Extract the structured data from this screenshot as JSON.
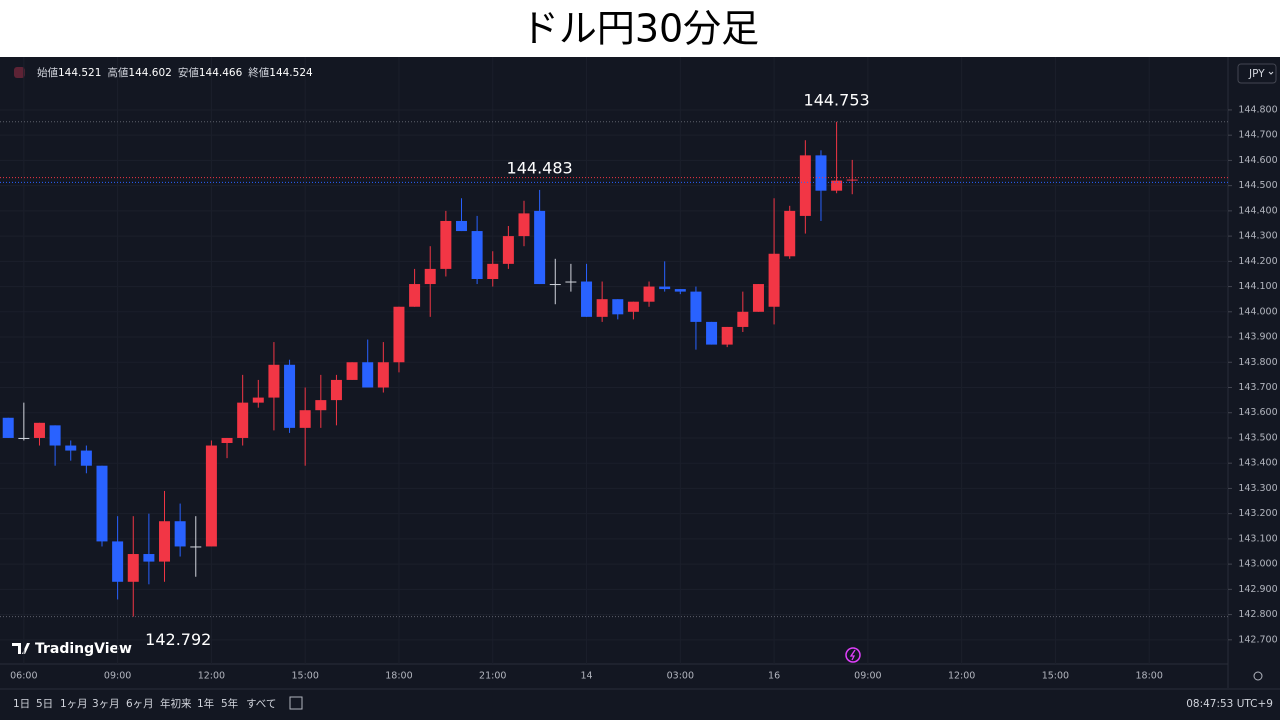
{
  "chart_data": {
    "type": "candlestick",
    "title": "ドル円30分足",
    "up_color": "#f23645",
    "down_color": "#2962ff",
    "doji_color": "#d1d4dc",
    "grid": true,
    "categories": [
      null,
      "06:00",
      null,
      null,
      null,
      null,
      null,
      "09:00",
      null,
      null,
      null,
      null,
      null,
      "12:00",
      null,
      null,
      null,
      null,
      null,
      "15:00",
      null,
      null,
      null,
      null,
      null,
      "18:00",
      null,
      null,
      null,
      null,
      null,
      "21:00",
      null,
      null,
      null,
      null,
      null,
      "14",
      null,
      null,
      null,
      null,
      null,
      "03:00",
      null,
      null,
      null,
      null,
      null,
      "16",
      null,
      null,
      null,
      null,
      null,
      "09:00",
      null,
      null,
      null,
      null,
      null,
      "12:00",
      null,
      null,
      null,
      null,
      null,
      "15:00",
      null,
      null,
      null,
      null,
      null,
      "18:00",
      null,
      null,
      null,
      null
    ],
    "open": [
      143.58,
      143.5,
      143.5,
      143.55,
      143.47,
      143.45,
      143.39,
      143.09,
      142.93,
      143.04,
      143.01,
      143.17,
      143.07,
      143.07,
      143.48,
      143.5,
      143.64,
      143.66,
      143.79,
      143.54,
      143.61,
      143.65,
      143.73,
      143.8,
      143.7,
      143.8,
      144.02,
      144.11,
      144.17,
      144.36,
      144.32,
      144.13,
      144.19,
      144.3,
      144.4,
      144.11,
      144.12,
      144.12,
      143.98,
      144.05,
      144.0,
      144.04,
      144.1,
      144.09,
      144.08,
      143.96,
      143.87,
      143.94,
      144.0,
      144.02,
      144.22,
      144.38,
      144.62,
      144.48,
      144.521,
      null,
      null,
      null,
      null,
      null,
      null,
      null,
      null,
      null,
      null,
      null,
      null,
      null,
      null,
      null,
      null,
      null,
      null,
      null,
      null,
      null,
      null,
      null
    ],
    "high": [
      143.58,
      143.64,
      143.56,
      143.55,
      143.49,
      143.47,
      143.39,
      143.19,
      143.19,
      143.2,
      143.29,
      143.24,
      143.19,
      143.49,
      143.5,
      143.75,
      143.73,
      143.88,
      143.81,
      143.7,
      143.75,
      143.75,
      143.8,
      143.89,
      143.88,
      144.02,
      144.17,
      144.26,
      144.4,
      144.45,
      144.38,
      144.24,
      144.34,
      144.44,
      144.483,
      144.21,
      144.19,
      144.19,
      144.12,
      144.05,
      144.04,
      144.12,
      144.2,
      144.09,
      144.1,
      143.96,
      143.94,
      144.08,
      144.11,
      144.45,
      144.42,
      144.68,
      144.64,
      144.753,
      144.602,
      null,
      null,
      null,
      null,
      null,
      null,
      null,
      null,
      null,
      null,
      null,
      null,
      null,
      null,
      null,
      null,
      null,
      null,
      null,
      null,
      null,
      null,
      null
    ],
    "low": [
      143.5,
      143.49,
      143.47,
      143.39,
      143.41,
      143.36,
      143.07,
      142.86,
      142.792,
      142.92,
      142.93,
      143.03,
      142.95,
      143.07,
      143.42,
      143.47,
      143.62,
      143.53,
      143.52,
      143.39,
      143.54,
      143.55,
      143.73,
      143.7,
      143.68,
      143.76,
      144.02,
      143.98,
      144.14,
      144.32,
      144.11,
      144.1,
      144.17,
      144.26,
      144.11,
      144.03,
      144.08,
      143.98,
      143.96,
      143.97,
      143.97,
      144.02,
      144.08,
      144.07,
      143.85,
      143.87,
      143.86,
      143.92,
      144.0,
      143.95,
      144.21,
      144.31,
      144.36,
      144.47,
      144.466,
      null,
      null,
      null,
      null,
      null,
      null,
      null,
      null,
      null,
      null,
      null,
      null,
      null,
      null,
      null,
      null,
      null,
      null,
      null,
      null,
      null,
      null,
      null
    ],
    "close": [
      143.5,
      143.5,
      143.56,
      143.47,
      143.45,
      143.39,
      143.09,
      142.93,
      143.04,
      143.01,
      143.17,
      143.07,
      143.07,
      143.47,
      143.5,
      143.64,
      143.66,
      143.79,
      143.54,
      143.61,
      143.65,
      143.73,
      143.8,
      143.7,
      143.8,
      144.02,
      144.11,
      144.17,
      144.36,
      144.32,
      144.13,
      144.19,
      144.3,
      144.39,
      144.11,
      144.11,
      144.12,
      143.98,
      144.05,
      143.99,
      144.04,
      144.1,
      144.09,
      144.08,
      143.96,
      143.87,
      143.94,
      144.0,
      144.11,
      144.23,
      144.4,
      144.62,
      144.48,
      144.52,
      144.524,
      null,
      null,
      null,
      null,
      null,
      null,
      null,
      null,
      null,
      null,
      null,
      null,
      null,
      null,
      null,
      null,
      null,
      null,
      null,
      null,
      null,
      null,
      null
    ],
    "ylim": [
      142.62,
      144.99
    ],
    "yticks": [
      {
        "value": 142.7,
        "label": "142.700"
      },
      {
        "value": 142.8,
        "label": "142.800"
      },
      {
        "value": 142.9,
        "label": "142.900"
      },
      {
        "value": 143.0,
        "label": "143.000"
      },
      {
        "value": 143.1,
        "label": "143.100"
      },
      {
        "value": 143.2,
        "label": "143.200"
      },
      {
        "value": 143.3,
        "label": "143.300"
      },
      {
        "value": 143.4,
        "label": "143.400"
      },
      {
        "value": 143.5,
        "label": "143.500"
      },
      {
        "value": 143.6,
        "label": "143.600"
      },
      {
        "value": 143.7,
        "label": "143.700"
      },
      {
        "value": 143.8,
        "label": "143.800"
      },
      {
        "value": 143.9,
        "label": "143.900"
      },
      {
        "value": 144.0,
        "label": "144.000"
      },
      {
        "value": 144.1,
        "label": "144.100"
      },
      {
        "value": 144.2,
        "label": "144.200"
      },
      {
        "value": 144.3,
        "label": "144.300"
      },
      {
        "value": 144.4,
        "label": "144.400"
      },
      {
        "value": 144.5,
        "label": "144.500"
      },
      {
        "value": 144.6,
        "label": "144.600"
      },
      {
        "value": 144.7,
        "label": "144.700"
      },
      {
        "value": 144.8,
        "label": "144.800"
      }
    ],
    "annotations": [
      "144.753",
      "144.483",
      "142.792"
    ],
    "ohlc_labels": [
      "始値",
      "高値",
      "安値",
      "終値"
    ],
    "currency": "JPY",
    "brand": "TradingView"
  },
  "toolbar": {
    "ranges": [
      "1日",
      "5日",
      "1ヶ月",
      "3ヶ月",
      "6ヶ月",
      "年初来",
      "1年",
      "5年",
      "すべて"
    ],
    "clock": "08:47:53 UTC+9"
  }
}
